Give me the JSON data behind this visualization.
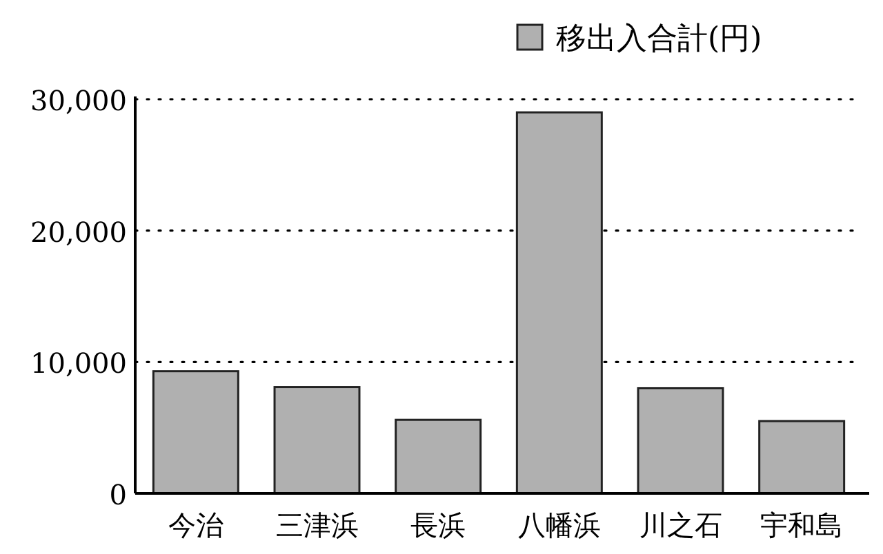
{
  "chart_data": {
    "type": "bar",
    "categories": [
      "今治",
      "三津浜",
      "長浜",
      "八幡浜",
      "川之石",
      "宇和島"
    ],
    "series": [
      {
        "name": "移出入合計(円)",
        "color": "#b0b0b0",
        "values": [
          9300,
          8100,
          5600,
          29000,
          8000,
          5500
        ]
      }
    ],
    "ylim": [
      0,
      30000
    ],
    "yticks": [
      {
        "value": 0,
        "label": "0"
      },
      {
        "value": 10000,
        "label": "10,000"
      },
      {
        "value": 20000,
        "label": "20,000"
      },
      {
        "value": 30000,
        "label": "30,000"
      }
    ],
    "grid": "y",
    "legend": "top right"
  }
}
